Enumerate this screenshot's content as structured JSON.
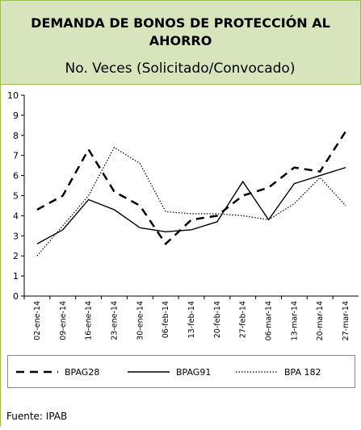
{
  "chart_data": {
    "type": "line",
    "title": "DEMANDA DE BONOS DE PROTECCIÓN AL AHORRO",
    "subtitle": "No. Veces (Solicitado/Convocado)",
    "source": "Fuente: IPAB",
    "categories": [
      "02-ene-14",
      "09-ene-14",
      "16-ene-14",
      "23-ene-14",
      "30-ene-14",
      "06-feb-14",
      "13-feb-14",
      "20-feb-14",
      "27-feb-14",
      "06-mar-14",
      "13-mar-14",
      "20-mar-14",
      "27-mar-14"
    ],
    "series": [
      {
        "name": "BPAG28",
        "color": "#000000",
        "dash": "dashed",
        "values": [
          4.3,
          5.0,
          7.3,
          5.2,
          4.5,
          2.6,
          3.8,
          4.0,
          5.0,
          5.4,
          6.4,
          6.2,
          8.2
        ]
      },
      {
        "name": "BPAG91",
        "color": "#000000",
        "dash": "solid",
        "values": [
          2.6,
          3.3,
          4.8,
          4.3,
          3.4,
          3.2,
          3.3,
          3.7,
          5.7,
          3.8,
          5.6,
          6.0,
          6.4
        ]
      },
      {
        "name": "BPA 182",
        "color": "#000000",
        "dash": "dotted",
        "values": [
          2.0,
          3.5,
          5.0,
          7.4,
          6.6,
          4.2,
          4.1,
          4.1,
          4.0,
          3.8,
          4.6,
          5.9,
          4.5
        ]
      }
    ],
    "ylim": [
      0,
      10
    ],
    "yticks": [
      0,
      1,
      2,
      3,
      4,
      5,
      6,
      7,
      8,
      9,
      10
    ],
    "grid": false,
    "legend": "bottom"
  }
}
